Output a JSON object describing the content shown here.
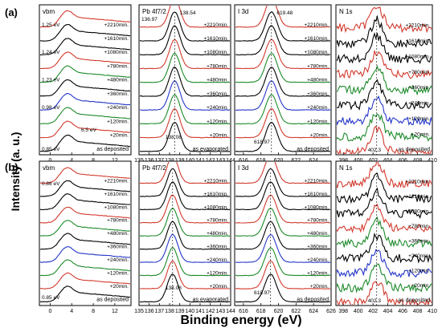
{
  "figure": {
    "row_labels": [
      "(a)",
      "(b)"
    ],
    "ylabel": "Intensity (a. u.)",
    "xlabel": "Binding energy (eV)",
    "curve_labels": [
      "+2210min.",
      "+1610min.",
      "+1080min.",
      "+780min.",
      "+480min.",
      "+360min.",
      "+240min.",
      "+120min.",
      "+20min.",
      "as deposited"
    ],
    "pb_bottom_label": "as evaporated",
    "colors": [
      "#d23a2e",
      "#000000",
      "#000000",
      "#d23a2e",
      "#1d8a2a",
      "#000000",
      "#2436c8",
      "#1d8a2a",
      "#d23a2e",
      "#000000"
    ]
  },
  "chart_data": [
    {
      "type": "line",
      "row": "a",
      "panel": "vbm",
      "title": "vbm",
      "xlim": [
        -2,
        15
      ],
      "xticks": [
        0,
        4,
        8,
        12
      ],
      "peak_center": 3.2,
      "peak_width": 1.4,
      "series_labels": [
        "+2210min.",
        "+1610min.",
        "+1080min.",
        "+780min.",
        "+480min.",
        "+360min.",
        "+240min.",
        "+120min.",
        "+20min.",
        "as deposited"
      ],
      "annotations": [
        "1.25 eV",
        "1.24 eV",
        "1.23 eV",
        "0.98 eV",
        "6.5 eV",
        "0.85 eV"
      ]
    },
    {
      "type": "line",
      "row": "a",
      "panel": "pb",
      "title": "Pb 4f7/2",
      "xlim": [
        135,
        144
      ],
      "xticks": [
        135,
        136,
        137,
        138,
        139,
        140,
        141,
        142,
        143,
        144
      ],
      "peak_center": 138.5,
      "peak_width": 0.75,
      "series_labels": [
        "+2210min.",
        "+1610min.",
        "+1080min.",
        "+780min.",
        "+480min.",
        "+360min.",
        "+240min.",
        "+120min.",
        "+20min.",
        "as evaporated"
      ],
      "annotations": [
        "138.54",
        "136.97",
        "138.08"
      ]
    },
    {
      "type": "line",
      "row": "a",
      "panel": "i",
      "title": "I 3d",
      "xlim": [
        615,
        626
      ],
      "xticks": [
        616,
        618,
        620,
        622,
        624
      ],
      "peak_center": 619.2,
      "peak_width": 0.95,
      "series_labels": [
        "+2210min.",
        "+1610min.",
        "+1080min.",
        "+780min.",
        "+480min.",
        "+360min.",
        "+240min.",
        "+120min.",
        "+20min.",
        "as deposited"
      ],
      "annotations": [
        "619.48",
        "618.97"
      ]
    },
    {
      "type": "line",
      "row": "a",
      "panel": "n",
      "title": "N 1s",
      "xlim": [
        397,
        410
      ],
      "xticks": [
        398,
        400,
        402,
        404,
        406,
        408,
        410
      ],
      "peak_center": 402.5,
      "peak_width": 1.1,
      "noisy": true,
      "series_labels": [
        "+2210min.",
        "+1610min.",
        "+1080min.",
        "+780min.",
        "+360min.",
        "+240min.",
        "+120min.",
        "+20min.",
        "as deposited"
      ],
      "annotations": [
        "402.3"
      ]
    },
    {
      "type": "line",
      "row": "b",
      "panel": "vbm",
      "title": "vbm",
      "xlim": [
        -2,
        15
      ],
      "xticks": [
        0,
        4,
        8,
        12
      ],
      "peak_center": 3.2,
      "peak_width": 1.4,
      "series_labels": [
        "+2210min.",
        "+1610min.",
        "+1080min.",
        "+780min.",
        "+480min.",
        "+360min.",
        "+240min.",
        "+120min.",
        "+20min.",
        "as deposited"
      ],
      "annotations": [
        "0.86 eV",
        "0.85 eV"
      ]
    },
    {
      "type": "line",
      "row": "b",
      "panel": "pb",
      "title": "Pb 4f7/2",
      "xlim": [
        135,
        144
      ],
      "xticks": [
        135,
        136,
        137,
        138,
        139,
        140,
        141,
        142,
        143,
        144
      ],
      "peak_center": 138.3,
      "peak_width": 0.75,
      "series_labels": [
        "+2210min.",
        "+1610min.",
        "+1080min.",
        "+780min.",
        "+480min.",
        "+360min.",
        "+240min.",
        "+120min.",
        "+20min.",
        "as evaporated"
      ],
      "annotations": [
        "138.08"
      ]
    },
    {
      "type": "line",
      "row": "b",
      "panel": "i",
      "title": "I 3d",
      "xlim": [
        615,
        626
      ],
      "xticks": [
        616,
        618,
        620,
        622,
        624,
        626
      ],
      "peak_center": 619.1,
      "peak_width": 0.95,
      "series_labels": [
        "+2210min.",
        "+1610min.",
        "+1080min.",
        "+780min.",
        "+480min.",
        "+360min.",
        "+240min.",
        "+120min.",
        "+20min.",
        "as deposited"
      ],
      "annotations": [
        "618.97"
      ]
    },
    {
      "type": "line",
      "row": "b",
      "panel": "n",
      "title": "N 1s",
      "xlim": [
        397,
        410
      ],
      "xticks": [
        398,
        400,
        402,
        404,
        406,
        408,
        410
      ],
      "peak_center": 402.5,
      "peak_width": 1.1,
      "noisy": true,
      "series_labels": [
        "+2210min.",
        "+1610min.",
        "+1080min.",
        "+780min.",
        "+360min.",
        "+240min.",
        "+120min.",
        "+20min.",
        "as deposited"
      ],
      "annotations": [
        "402.3"
      ]
    }
  ]
}
